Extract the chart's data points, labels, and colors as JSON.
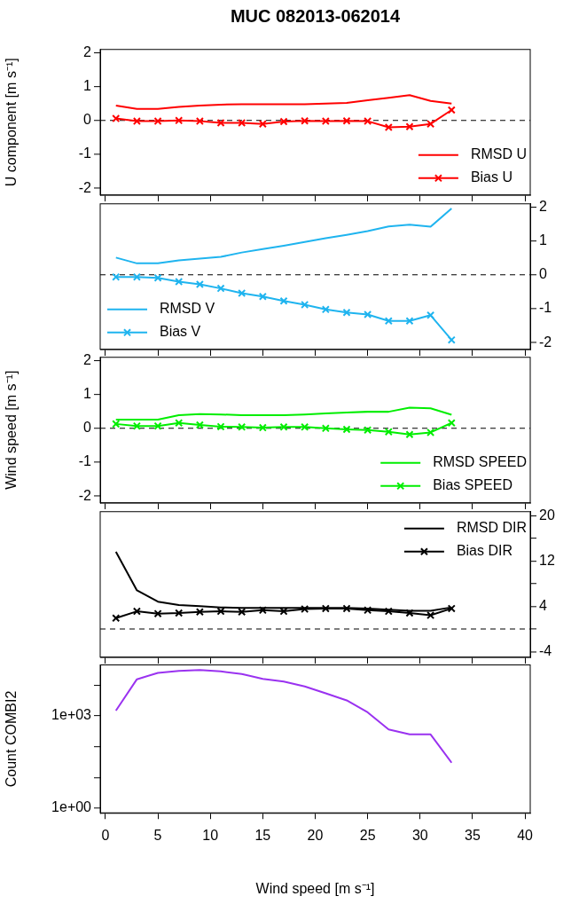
{
  "chart_data": [
    {
      "type": "line",
      "title": "MUC 082013-062014",
      "ylabel": "U component [m s⁻¹]",
      "x": [
        1,
        3,
        5,
        7,
        9,
        11,
        13,
        15,
        17,
        19,
        21,
        23,
        25,
        27,
        29,
        31,
        33
      ],
      "xlim": [
        -0.5,
        40.5
      ],
      "xticks": [
        0,
        5,
        10,
        15,
        20,
        25,
        30,
        35,
        40
      ],
      "ylim": [
        -2.2,
        2.1
      ],
      "yticks": [
        -2,
        -1,
        0,
        1,
        2
      ],
      "tick_labels": "y",
      "legend": "bottom right",
      "ref_lines": [
        {
          "axis": "y",
          "value": 0,
          "color": "#000000",
          "line_style": "dashed"
        }
      ],
      "series": [
        {
          "name": "RMSD U",
          "color": "#ff0000",
          "marker": "none",
          "values": [
            0.44,
            0.34,
            0.34,
            0.4,
            0.44,
            0.47,
            0.48,
            0.48,
            0.48,
            0.48,
            0.5,
            0.52,
            0.6,
            0.67,
            0.75,
            0.58,
            0.5
          ]
        },
        {
          "name": "Bias U",
          "color": "#ff0000",
          "marker": "cross",
          "values": [
            0.06,
            -0.02,
            -0.02,
            0,
            -0.02,
            -0.07,
            -0.07,
            -0.1,
            -0.03,
            -0.01,
            -0.02,
            -0.01,
            -0.02,
            -0.2,
            -0.18,
            -0.1,
            0.31
          ]
        }
      ]
    },
    {
      "type": "line",
      "x": [
        1,
        3,
        5,
        7,
        9,
        11,
        13,
        15,
        17,
        19,
        21,
        23,
        25,
        27,
        29,
        31,
        33
      ],
      "xlim": [
        -0.5,
        40.5
      ],
      "xticks": [
        0,
        5,
        10,
        15,
        20,
        25,
        30,
        35,
        40
      ],
      "ylim": [
        -2.2,
        2.1
      ],
      "yticks": [
        -2,
        -1,
        0,
        1,
        2
      ],
      "tick_labels": "y",
      "legend": "bottom left",
      "ref_lines": [
        {
          "axis": "y",
          "value": 0,
          "color": "#000000",
          "line_style": "dashed"
        }
      ],
      "series": [
        {
          "name": "RMSD V",
          "color": "#1fb4ef",
          "marker": "none",
          "values": [
            0.51,
            0.34,
            0.34,
            0.43,
            0.48,
            0.53,
            0.66,
            0.76,
            0.86,
            0.97,
            1.08,
            1.18,
            1.29,
            1.43,
            1.48,
            1.42,
            1.96
          ]
        },
        {
          "name": "Bias V",
          "color": "#1fb4ef",
          "marker": "cross",
          "values": [
            -0.06,
            -0.06,
            -0.09,
            -0.2,
            -0.28,
            -0.4,
            -0.54,
            -0.64,
            -0.77,
            -0.88,
            -1.02,
            -1.11,
            -1.17,
            -1.36,
            -1.36,
            -1.19,
            -1.92
          ]
        }
      ]
    },
    {
      "type": "line",
      "ylabel": "Wind speed [m s⁻¹]",
      "x": [
        1,
        3,
        5,
        7,
        9,
        11,
        13,
        15,
        17,
        19,
        21,
        23,
        25,
        27,
        29,
        31,
        33
      ],
      "xlim": [
        -0.5,
        40.5
      ],
      "xticks": [
        0,
        5,
        10,
        15,
        20,
        25,
        30,
        35,
        40
      ],
      "ylim": [
        -2.2,
        2.1
      ],
      "yticks": [
        -2,
        -1,
        0,
        1,
        2
      ],
      "tick_labels": "y",
      "legend": "bottom right",
      "ref_lines": [
        {
          "axis": "y",
          "value": 0,
          "color": "#000000",
          "line_style": "dashed"
        }
      ],
      "series": [
        {
          "name": "RMSD SPEED",
          "color": "#00ee00",
          "marker": "none",
          "values": [
            0.26,
            0.26,
            0.26,
            0.39,
            0.42,
            0.41,
            0.39,
            0.39,
            0.39,
            0.41,
            0.44,
            0.47,
            0.49,
            0.49,
            0.61,
            0.59,
            0.4
          ]
        },
        {
          "name": "Bias SPEED",
          "color": "#00ee00",
          "marker": "cross",
          "values": [
            0.13,
            0.07,
            0.07,
            0.16,
            0.1,
            0.05,
            0.04,
            0.02,
            0.04,
            0.04,
            0,
            -0.03,
            -0.05,
            -0.1,
            -0.18,
            -0.12,
            0.16
          ]
        }
      ]
    },
    {
      "type": "line",
      "x": [
        1,
        3,
        5,
        7,
        9,
        11,
        13,
        15,
        17,
        19,
        21,
        23,
        25,
        27,
        29,
        31,
        33
      ],
      "xlim": [
        -0.5,
        40.5
      ],
      "xticks": [
        0,
        5,
        10,
        15,
        20,
        25,
        30,
        35,
        40
      ],
      "ylim": [
        -5,
        20.7
      ],
      "yticks": [
        {
          "value": -4,
          "label": "-4"
        },
        {
          "value": 0,
          "label": null
        },
        {
          "value": 4,
          "label": "4"
        },
        {
          "value": 8,
          "label": null
        },
        {
          "value": 12,
          "label": "12"
        },
        {
          "value": 16,
          "label": null
        },
        {
          "value": 20,
          "label": "20"
        }
      ],
      "tick_labels": "y",
      "legend": "top right",
      "ref_lines": [
        {
          "axis": "y",
          "value": 0,
          "color": "#000000",
          "line_style": "dashed"
        }
      ],
      "series": [
        {
          "name": "RMSD DIR",
          "color": "#000000",
          "marker": "none",
          "values": [
            13.6,
            6.8,
            4.8,
            4.2,
            4.0,
            3.8,
            3.7,
            3.7,
            3.7,
            3.7,
            3.7,
            3.7,
            3.6,
            3.4,
            3.2,
            3.2,
            3.8
          ]
        },
        {
          "name": "Bias DIR",
          "color": "#000000",
          "marker": "cross",
          "values": [
            1.9,
            3.1,
            2.7,
            2.8,
            3.0,
            3.1,
            3.0,
            3.3,
            3.1,
            3.5,
            3.6,
            3.6,
            3.3,
            3.1,
            2.8,
            2.4,
            3.6
          ]
        }
      ]
    },
    {
      "type": "line",
      "ylabel": "Count COMBI2",
      "xlabel": "Wind speed [m s⁻¹]",
      "x": [
        1,
        3,
        5,
        7,
        9,
        11,
        13,
        15,
        17,
        19,
        21,
        23,
        25,
        27,
        29,
        31,
        33
      ],
      "xlim": [
        -0.5,
        40.5
      ],
      "xticks": [
        0,
        5,
        10,
        15,
        20,
        25,
        30,
        35,
        40
      ],
      "ylim": [
        0.7,
        45000
      ],
      "yticks": [
        {
          "value": 1,
          "label": "1e+00"
        },
        {
          "value": 10,
          "label": null
        },
        {
          "value": 100,
          "label": null
        },
        {
          "value": 1000,
          "label": "1e+03"
        },
        {
          "value": 10000,
          "label": null
        }
      ],
      "log": true,
      "series": [
        {
          "color": "#9a32f0",
          "marker": "none",
          "values": [
            1480,
            15500,
            25000,
            29000,
            31000,
            28000,
            23000,
            16000,
            13000,
            9100,
            5400,
            3200,
            1300,
            360,
            250,
            250,
            30
          ]
        }
      ]
    }
  ]
}
